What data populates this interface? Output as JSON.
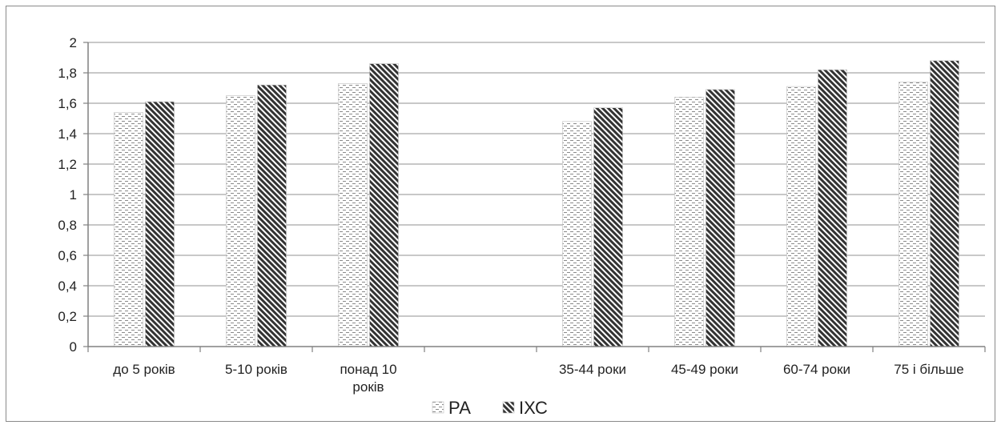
{
  "chart_data": {
    "type": "bar",
    "categories": [
      "до 5 років",
      "5-10 років",
      "понад 10 років",
      "",
      "35-44 роки",
      "45-49 роки",
      "60-74 роки",
      "75 і більше"
    ],
    "category_lines": [
      [
        "до 5 років"
      ],
      [
        "5-10 років"
      ],
      [
        "понад 10",
        "років"
      ],
      [],
      [
        "35-44 роки"
      ],
      [
        "45-49 роки"
      ],
      [
        "60-74 роки"
      ],
      [
        "75 і більше"
      ]
    ],
    "series": [
      {
        "name": "РА",
        "values": [
          1.54,
          1.65,
          1.73,
          null,
          1.48,
          1.64,
          1.71,
          1.74
        ]
      },
      {
        "name": "ІХС",
        "values": [
          1.61,
          1.72,
          1.86,
          null,
          1.57,
          1.69,
          1.82,
          1.88
        ]
      }
    ],
    "ylim": [
      0,
      2
    ],
    "yticks": [
      "0",
      "0,2",
      "0,4",
      "0,6",
      "0,8",
      "1",
      "1,2",
      "1,4",
      "1,6",
      "1,8",
      "2"
    ],
    "title": "",
    "xlabel": "",
    "ylabel": "",
    "grid": "horizontal",
    "legend": "bottom",
    "colors": {
      "gridline": "#a6a6a6",
      "axis": "#808080",
      "ra_pattern": "#9a9a9a",
      "ihd_pattern": "#3a3a3a",
      "text": "#222222"
    }
  }
}
